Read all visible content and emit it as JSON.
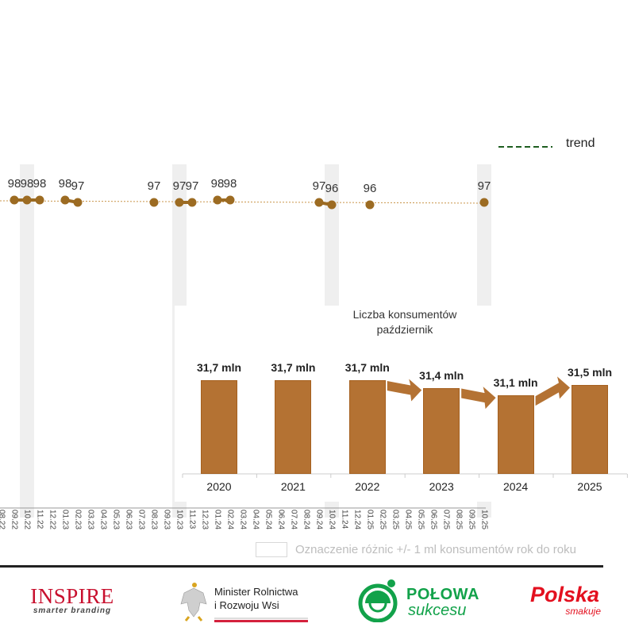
{
  "legend": {
    "trend_label": "trend",
    "trend_color": "#1e5e20",
    "note_label": "Oznaczenie różnic +/- 1 ml konsumentów rok do roku"
  },
  "chart_data": [
    {
      "type": "line",
      "months": [
        "08.22",
        "09.22",
        "10.22",
        "11.22",
        "12.22",
        "01.23",
        "02.23",
        "03.23",
        "04.23",
        "05.23",
        "06.23",
        "07.23",
        "08.23",
        "09.23",
        "10.23",
        "11.23",
        "12.23",
        "01.24",
        "02.24",
        "03.24",
        "04.24",
        "05.24",
        "06.24",
        "07.24",
        "08.24",
        "09.24",
        "10.24",
        "11.24",
        "12.24",
        "01.25",
        "02.25",
        "03.25",
        "04.25",
        "05.25",
        "06.25",
        "07.25",
        "08.25",
        "09.25",
        "10.25"
      ],
      "points": [
        {
          "month": "09.22",
          "value": 98
        },
        {
          "month": "10.22",
          "value": 98
        },
        {
          "month": "11.22",
          "value": 98
        },
        {
          "month": "01.23",
          "value": 98
        },
        {
          "month": "02.23",
          "value": 97
        },
        {
          "month": "08.23",
          "value": 97
        },
        {
          "month": "10.23",
          "value": 97
        },
        {
          "month": "11.23",
          "value": 97
        },
        {
          "month": "01.24",
          "value": 98
        },
        {
          "month": "02.24",
          "value": 98
        },
        {
          "month": "09.24",
          "value": 97
        },
        {
          "month": "10.24",
          "value": 96
        },
        {
          "month": "01.25",
          "value": 96
        },
        {
          "month": "10.25",
          "value": 97
        }
      ],
      "highlighted_months": [
        "10.22",
        "10.23",
        "10.24",
        "10.25"
      ],
      "series_color": "#9c6b22",
      "band_color": "#efefef"
    },
    {
      "type": "bar",
      "title_lines": [
        "Liczba konsumentów",
        "październik"
      ],
      "categories": [
        "2020",
        "2021",
        "2022",
        "2023",
        "2024",
        "2025"
      ],
      "values": [
        31.7,
        31.7,
        31.7,
        31.4,
        31.1,
        31.5
      ],
      "value_labels": [
        "31,7 mln",
        "31,7 mln",
        "31,7 mln",
        "31,4 mln",
        "31,1 mln",
        "31,5 mln"
      ],
      "unit": "mln",
      "arrows_between": [
        [
          "2022",
          "2023"
        ],
        [
          "2023",
          "2024"
        ],
        [
          "2024",
          "2025"
        ]
      ],
      "bar_color": "#b47233"
    }
  ],
  "logos": {
    "inspire": {
      "name": "INSPIRE",
      "tagline": "smarter branding"
    },
    "ministry": {
      "line1": "Minister Rolnictwa",
      "line2": "i Rozwoju Wsi"
    },
    "polowa": {
      "line1": "POŁOWA",
      "line2": "sukcesu"
    },
    "polska": {
      "line1": "Polska",
      "line2": "smakuje"
    }
  }
}
